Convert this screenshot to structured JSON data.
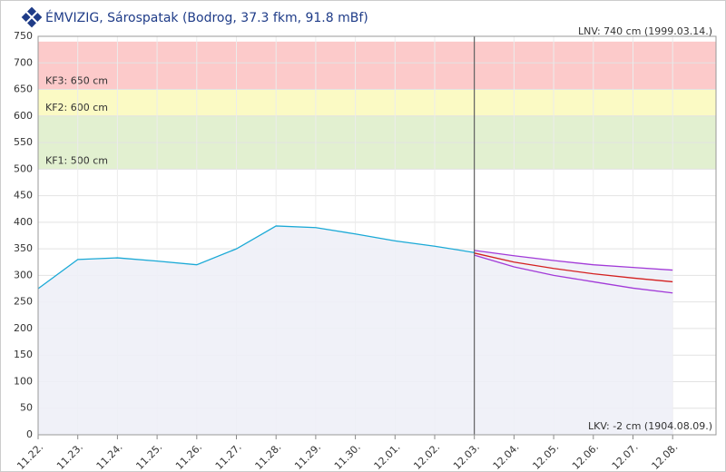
{
  "chart_data": {
    "type": "line",
    "title": "ÉMVIZIG, Sárospatak (Bodrog, 37.3 fkm, 91.8 mBf)",
    "annotations": [
      "LNV: 740 cm (1999.03.14.)",
      "LKV: -2 cm (1904.08.09.)"
    ],
    "bands": [
      {
        "label": "KF1: 500 cm",
        "from": 500,
        "to": 600,
        "color": "#e2f0d0"
      },
      {
        "label": "KF2: 600 cm",
        "from": 600,
        "to": 650,
        "color": "#fbfac4"
      },
      {
        "label": "KF3: 650 cm",
        "from": 650,
        "to": 740,
        "color": "#fccaca"
      }
    ],
    "categories": [
      "11.22.",
      "11.23.",
      "11.24.",
      "11.25.",
      "11.26.",
      "11.27.",
      "11.28.",
      "11.29.",
      "11.30.",
      "12.01.",
      "12.02.",
      "12.03.",
      "12.04.",
      "12.05.",
      "12.06.",
      "12.07.",
      "12.08."
    ],
    "series": [
      {
        "color": "#1aa9d6",
        "area": true,
        "values": [
          275,
          330,
          333,
          327,
          320,
          350,
          393,
          390,
          378,
          365,
          355,
          343,
          null,
          null,
          null,
          null,
          null
        ]
      },
      {
        "color": "#d42020",
        "area": false,
        "values": [
          null,
          null,
          null,
          null,
          null,
          null,
          null,
          null,
          null,
          null,
          null,
          342,
          325,
          313,
          303,
          295,
          288
        ]
      },
      {
        "color": "#a23ad8",
        "area": true,
        "values": [
          null,
          null,
          null,
          null,
          null,
          null,
          null,
          null,
          null,
          null,
          null,
          347,
          337,
          328,
          320,
          315,
          310
        ]
      },
      {
        "color": "#a23ad8",
        "area": false,
        "values": [
          null,
          null,
          null,
          null,
          null,
          null,
          null,
          null,
          null,
          null,
          null,
          338,
          316,
          300,
          288,
          276,
          267
        ]
      }
    ],
    "ylim": [
      0,
      750
    ],
    "yticks": [
      0,
      50,
      100,
      150,
      200,
      250,
      300,
      350,
      400,
      450,
      500,
      550,
      600,
      650,
      700,
      750
    ],
    "grid": true
  }
}
